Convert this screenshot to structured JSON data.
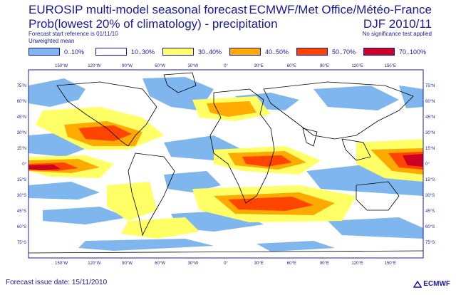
{
  "header": {
    "title_line1": "EUROSIP multi-model seasonal forecast",
    "title_line2": "Prob(lowest 20% of climatology) - precipitation",
    "subtitle_line1": "Forecast start reference is 01/11/10",
    "subtitle_line2": "Unweighted mean",
    "right_title1": "ECMWF/Met Office/Météo-France",
    "right_title2": "DJF 2010/11",
    "right_subtitle": "No significance test applied"
  },
  "legend": [
    {
      "label": "0..10%",
      "color": "#7fb6ee"
    },
    {
      "label": "10..30%",
      "color": "#ffffff"
    },
    {
      "label": "30..40%",
      "color": "#ffff66"
    },
    {
      "label": "40..50%",
      "color": "#ffaa00"
    },
    {
      "label": "50..70%",
      "color": "#ff4400"
    },
    {
      "label": "70..100%",
      "color": "#cc0022"
    }
  ],
  "axes": {
    "lon_labels": [
      "150°W",
      "120°W",
      "90°W",
      "60°W",
      "30°W",
      "0°",
      "30°E",
      "60°E",
      "90°E",
      "120°E",
      "150°E"
    ],
    "lat_labels": [
      "75°N",
      "60°N",
      "45°N",
      "30°N",
      "15°N",
      "0°",
      "15°S",
      "30°S",
      "45°S",
      "60°S",
      "75°S"
    ]
  },
  "footer": {
    "issue_date": "Forecast issue date: 15/11/2010",
    "logo_text": "ECMWF"
  },
  "colors": {
    "text": "#1a1aa0",
    "coast": "#000000",
    "map_bg": "#ffffff",
    "border": "#1a1aa0"
  }
}
